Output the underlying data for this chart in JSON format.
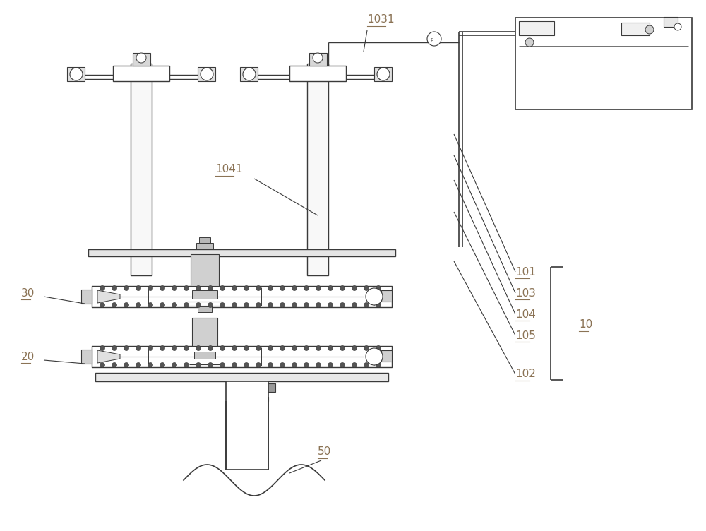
{
  "bg_color": "#ffffff",
  "line_color": "#3a3a3a",
  "label_color": "#8B7355",
  "fig_width": 10.0,
  "fig_height": 7.52,
  "dpi": 100
}
